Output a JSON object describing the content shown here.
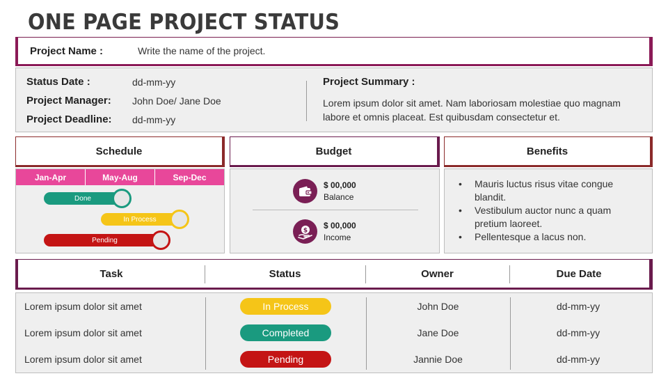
{
  "title": "ONE PAGE PROJECT STATUS",
  "project": {
    "name_label": "Project Name :",
    "name_value": "Write the name of the project."
  },
  "info": {
    "status_date_label": "Status Date :",
    "status_date_value": "dd-mm-yy",
    "manager_label": "Project Manager:",
    "manager_value": "John Doe/ Jane Doe",
    "deadline_label": "Project Deadline:",
    "deadline_value": "dd-mm-yy",
    "summary_title": "Project Summary :",
    "summary_text": "Lorem ipsum dolor sit amet. Nam laboriosam molestiae quo magnam labore et omnis placeat. Est quibusdam consectetur et."
  },
  "schedule": {
    "heading": "Schedule",
    "months": [
      "Jan-Apr",
      "May-Aug",
      "Sep-Dec"
    ],
    "bars": [
      {
        "label": "Done",
        "color": "#1a9a7f"
      },
      {
        "label": "In Process",
        "color": "#f5c518"
      },
      {
        "label": "Pending",
        "color": "#c41414"
      }
    ]
  },
  "budget": {
    "heading": "Budget",
    "items": [
      {
        "amount": "$ 00,000",
        "label": "Balance",
        "icon": "wallet-icon"
      },
      {
        "amount": "$ 00,000",
        "label": "Income",
        "icon": "money-hand-icon"
      }
    ],
    "icon_color": "#7a1f55"
  },
  "benefits": {
    "heading": "Benefits",
    "items": [
      "Mauris luctus risus vitae congue blandit.",
      "Vestibulum auctor nunc a quam pretium laoreet.",
      "Pellentesque a lacus non."
    ]
  },
  "table": {
    "headers": [
      "Task",
      "Status",
      "Owner",
      "Due Date"
    ],
    "rows": [
      {
        "task": "Lorem ipsum dolor sit amet",
        "status": "In Process",
        "status_color": "#f5c518",
        "owner": "John Doe",
        "due": "dd-mm-yy"
      },
      {
        "task": "Lorem ipsum dolor sit amet",
        "status": "Completed",
        "status_color": "#1a9a7f",
        "owner": "Jane Doe",
        "due": "dd-mm-yy"
      },
      {
        "task": "Lorem ipsum dolor sit amet",
        "status": "Pending",
        "status_color": "#c41414",
        "owner": "Jannie Doe",
        "due": "dd-mm-yy"
      }
    ]
  },
  "colors": {
    "accent_maroon": "#7a1f55",
    "accent_red": "#8b2a2a",
    "schedule_header": "#e8479a"
  }
}
